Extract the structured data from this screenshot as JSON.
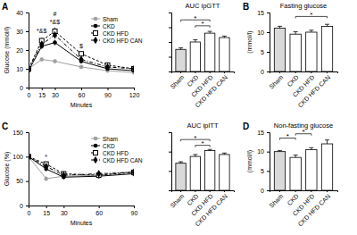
{
  "panel_labels": [
    "A",
    "B",
    "C",
    "D"
  ],
  "chart_data": [
    {
      "type": "line",
      "panel_label": "A",
      "y_label": "Glucose (mmol/l)",
      "x_label": "Minutes",
      "x": [
        0,
        15,
        30,
        60,
        90,
        120
      ],
      "xlim": [
        0,
        120
      ],
      "xticks": [
        0,
        15,
        30,
        60,
        90,
        120
      ],
      "ylim": [
        0,
        40
      ],
      "yticks": [
        0,
        10,
        20,
        30,
        40
      ],
      "legend": "upper right",
      "series": [
        {
          "name": "Sham",
          "color": "#a0a0a0",
          "marker": "circle",
          "line_style": "solid",
          "values": [
            10,
            15,
            14,
            11,
            9,
            8
          ],
          "errors": [
            0.5,
            1,
            1,
            0.8,
            0.5,
            0.5
          ]
        },
        {
          "name": "CKD",
          "color": "#000000",
          "marker": "circle",
          "line_style": "solid",
          "values": [
            9,
            22,
            24,
            14,
            10,
            9
          ],
          "errors": [
            0.5,
            1.5,
            1.5,
            1,
            0.6,
            0.5
          ]
        },
        {
          "name": "CKD HFD",
          "color": "#000000",
          "marker": "square_open",
          "line_style": "dashed",
          "values": [
            10,
            25,
            30,
            18,
            12,
            10
          ],
          "errors": [
            0.5,
            1.5,
            2,
            1.2,
            0.8,
            0.6
          ]
        },
        {
          "name": "CKD HFD CAN",
          "color": "#000000",
          "marker": "diamond",
          "line_style": "dashdot",
          "values": [
            10,
            23,
            28,
            15,
            11,
            10
          ],
          "errors": [
            0.5,
            1.5,
            1.5,
            1,
            0.7,
            0.6
          ]
        }
      ],
      "annotations": [
        {
          "text": "*&$",
          "x": 15,
          "y": 29
        },
        {
          "text": "*&$",
          "x": 30,
          "y": 34
        },
        {
          "text": "#",
          "x": 30,
          "y": 38
        },
        {
          "text": "$",
          "x": 60,
          "y": 21
        }
      ]
    },
    {
      "type": "bar",
      "title": "AUC ipGTT",
      "categories": [
        "Sham",
        "CKD",
        "CKD HFD",
        "CKD HFD CAN"
      ],
      "values": [
        1500,
        2000,
        2600,
        2300
      ],
      "errors": [
        100,
        150,
        120,
        100
      ],
      "colors": [
        "#d9d9d9",
        "#ffffff",
        "#ffffff",
        "#ffffff"
      ],
      "ylim": [
        0,
        4000
      ],
      "yticks": [
        0,
        1000,
        2000,
        3000,
        4000
      ],
      "tick_labels": "x",
      "brackets": [
        {
          "from": 0,
          "to": 2,
          "y": 3500,
          "text": "*"
        },
        {
          "from": 1,
          "to": 2,
          "y": 3100,
          "text": "*"
        }
      ]
    },
    {
      "type": "bar",
      "panel_label": "B",
      "title": "Fasting glucose",
      "y_label": "(mmol/l)",
      "categories": [
        "Sham",
        "CKD",
        "CKD HFD",
        "CKD HFD CAN"
      ],
      "values": [
        11,
        9.5,
        10,
        11.5
      ],
      "errors": [
        0.5,
        0.6,
        0.5,
        0.5
      ],
      "colors": [
        "#d9d9d9",
        "#ffffff",
        "#ffffff",
        "#ffffff"
      ],
      "ylim": [
        0,
        15
      ],
      "yticks": [
        0,
        5,
        10,
        15
      ],
      "brackets": [
        {
          "from": 1,
          "to": 3,
          "y": 14,
          "text": "*"
        }
      ]
    },
    {
      "type": "line",
      "panel_label": "C",
      "y_label": "Glucose (%)",
      "x_label": "Minutes",
      "x": [
        0,
        15,
        30,
        60,
        90
      ],
      "xlim": [
        0,
        90
      ],
      "xticks": [
        0,
        15,
        30,
        60,
        90
      ],
      "ylim": [
        0,
        150
      ],
      "yticks": [
        0,
        50,
        100,
        150
      ],
      "legend": "upper right",
      "series": [
        {
          "name": "Sham",
          "color": "#a0a0a0",
          "marker": "circle",
          "line_style": "solid",
          "values": [
            100,
            55,
            60,
            62,
            70
          ],
          "errors": [
            0,
            5,
            5,
            5,
            5
          ]
        },
        {
          "name": "CKD",
          "color": "#000000",
          "marker": "circle",
          "line_style": "solid",
          "values": [
            100,
            75,
            58,
            60,
            65
          ],
          "errors": [
            0,
            5,
            4,
            4,
            5
          ]
        },
        {
          "name": "CKD HFD",
          "color": "#000000",
          "marker": "square_open",
          "line_style": "dashed",
          "values": [
            100,
            85,
            65,
            62,
            68
          ],
          "errors": [
            0,
            4,
            4,
            4,
            4
          ]
        },
        {
          "name": "CKD HFD CAN",
          "color": "#000000",
          "marker": "diamond",
          "line_style": "dashdot",
          "values": [
            100,
            80,
            62,
            65,
            68
          ],
          "errors": [
            0,
            4,
            4,
            4,
            4
          ]
        }
      ],
      "annotations": [
        {
          "text": "*",
          "x": 15,
          "y": 95
        }
      ]
    },
    {
      "type": "bar",
      "title": "AUC ipITT",
      "categories": [
        "Sham",
        "CKD",
        "CKD HFD",
        "CKD HFD CAN"
      ],
      "values": [
        5600,
        7000,
        8200,
        7400
      ],
      "errors": [
        300,
        400,
        250,
        300
      ],
      "colors": [
        "#d9d9d9",
        "#ffffff",
        "#ffffff",
        "#ffffff"
      ],
      "ylim": [
        0,
        12000
      ],
      "yticks": [
        0,
        4000,
        8000,
        12000
      ],
      "tick_labels": "x",
      "brackets": [
        {
          "from": 0,
          "to": 2,
          "y": 10500,
          "text": "*"
        },
        {
          "from": 1,
          "to": 2,
          "y": 9300,
          "text": "*"
        }
      ]
    },
    {
      "type": "bar",
      "panel_label": "D",
      "title": "Non-fasting glucose",
      "y_label": "(mmol/l)",
      "categories": [
        "Sham",
        "CKD",
        "CKD HFD",
        "CKD HFD CAN"
      ],
      "values": [
        10,
        8.5,
        10.5,
        12
      ],
      "errors": [
        0.3,
        0.6,
        0.5,
        1
      ],
      "colors": [
        "#d9d9d9",
        "#ffffff",
        "#ffffff",
        "#ffffff"
      ],
      "ylim": [
        0,
        15
      ],
      "yticks": [
        0,
        5,
        10,
        15
      ],
      "brackets": [
        {
          "from": 0,
          "to": 1,
          "y": 13.5,
          "text": "*"
        },
        {
          "from": 1,
          "to": 2,
          "y": 14.6,
          "text": "*"
        }
      ]
    }
  ]
}
